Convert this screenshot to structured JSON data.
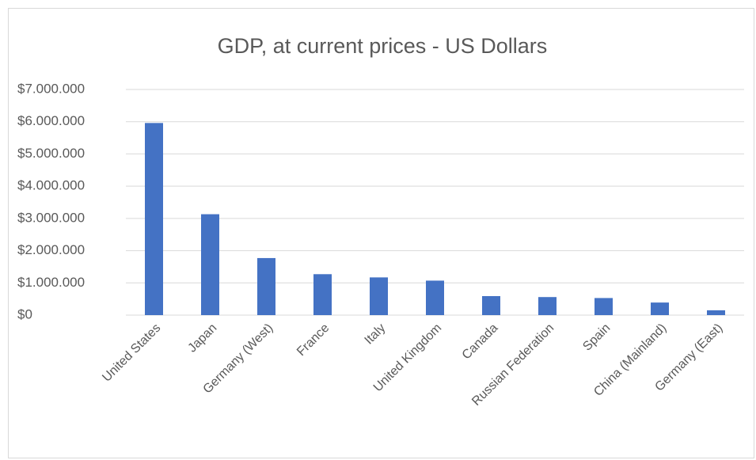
{
  "chart_data": {
    "type": "bar",
    "title": "GDP, at current prices - US Dollars",
    "categories": [
      "United States",
      "Japan",
      "Germany (West)",
      "France",
      "Italy",
      "United Kingdom",
      "Canada",
      "Russian Federation",
      "Spain",
      "China (Mainland)",
      "Germany (East)"
    ],
    "values": [
      5960000,
      3130000,
      1770000,
      1270000,
      1170000,
      1070000,
      590000,
      560000,
      530000,
      390000,
      150000
    ],
    "color": "#4472c4",
    "ylim": [
      0,
      7000000
    ],
    "yticks": [
      {
        "value": 0,
        "label": "$0"
      },
      {
        "value": 1000000,
        "label": "$1.000.000"
      },
      {
        "value": 2000000,
        "label": "$2.000.000"
      },
      {
        "value": 3000000,
        "label": "$3.000.000"
      },
      {
        "value": 4000000,
        "label": "$4.000.000"
      },
      {
        "value": 5000000,
        "label": "$5.000.000"
      },
      {
        "value": 6000000,
        "label": "$6.000.000"
      },
      {
        "value": 7000000,
        "label": "$7.000.000"
      }
    ],
    "grid": true
  }
}
